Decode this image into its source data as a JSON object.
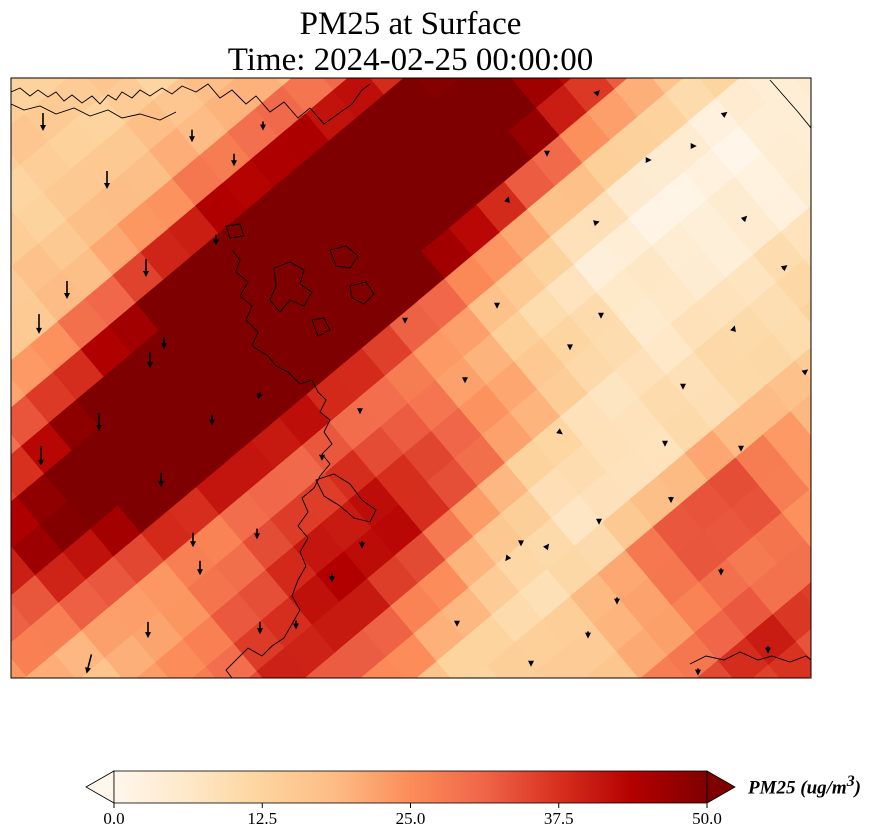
{
  "title": {
    "line1": "PM25 at Surface",
    "line2": "Time: 2024-02-25 00:00:00"
  },
  "colorbar": {
    "label_text": "PM25 (ug/m",
    "label_exponent": "3",
    "label_close": ")",
    "ticks": [
      "0.0",
      "12.5",
      "25.0",
      "37.5",
      "50.0"
    ],
    "tick_values": [
      0,
      12.5,
      25,
      37.5,
      50
    ],
    "min": 0,
    "max": 50,
    "extend": "both",
    "colormap": "OrRd",
    "colormap_stops": [
      "#fff7ec",
      "#fee8c8",
      "#fdd49e",
      "#fdbb84",
      "#fc8d59",
      "#ef6548",
      "#d7301f",
      "#b30000",
      "#7f0000"
    ]
  },
  "map": {
    "variable": "PM25",
    "level": "Surface",
    "overlays": [
      "coastlines",
      "wind-vectors"
    ],
    "colors": {
      "frame": "#000000",
      "coastline": "#000000",
      "wind_arrow": "#000000"
    }
  }
}
